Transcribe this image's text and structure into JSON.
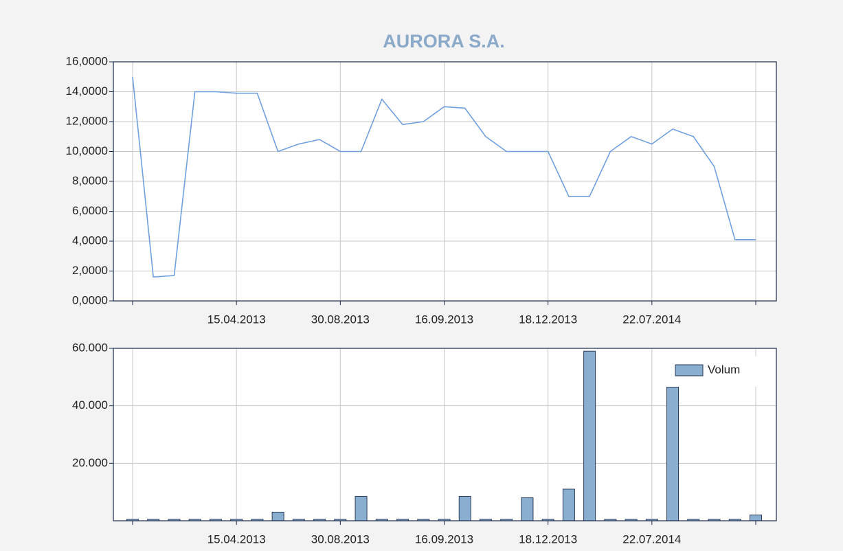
{
  "chart_data": [
    {
      "type": "line",
      "title": "AURORA S.A.",
      "color": "#6f9fe0",
      "grid": true,
      "categories": [
        null,
        null,
        null,
        null,
        null,
        "15.04.2013",
        null,
        null,
        null,
        null,
        "30.08.2013",
        null,
        null,
        null,
        null,
        "16.09.2013",
        null,
        null,
        null,
        null,
        "18.12.2013",
        null,
        null,
        null,
        null,
        "22.07.2014",
        null,
        null,
        null,
        null,
        null
      ],
      "values": [
        15,
        1.6,
        1.7,
        14,
        14,
        13.9,
        13.9,
        10,
        10.5,
        10.8,
        10,
        10,
        13.5,
        11.8,
        12,
        13,
        12.9,
        11,
        10,
        10,
        10,
        7,
        7,
        10,
        11,
        10.5,
        11.5,
        11,
        9,
        4.1,
        4.1
      ],
      "ylim": [
        0,
        16
      ],
      "yticks": [
        {
          "value": 0,
          "label": "0,0000"
        },
        {
          "value": 2,
          "label": "2,0000"
        },
        {
          "value": 4,
          "label": "4,0000"
        },
        {
          "value": 6,
          "label": "6,0000"
        },
        {
          "value": 8,
          "label": "8,0000"
        },
        {
          "value": 10,
          "label": "10,0000"
        },
        {
          "value": 12,
          "label": "12,0000"
        },
        {
          "value": 14,
          "label": "14,0000"
        },
        {
          "value": 16,
          "label": "16,0000"
        }
      ]
    },
    {
      "type": "bar",
      "grid": true,
      "legend": "upper right",
      "categories": [
        null,
        null,
        null,
        null,
        null,
        "15.04.2013",
        null,
        null,
        null,
        null,
        "30.08.2013",
        null,
        null,
        null,
        null,
        "16.09.2013",
        null,
        null,
        null,
        null,
        "18.12.2013",
        null,
        null,
        null,
        null,
        "22.07.2014",
        null,
        null,
        null,
        null,
        null
      ],
      "series": [
        {
          "name": "Volum",
          "color": "#8aaed0",
          "values": [
            500,
            500,
            500,
            500,
            500,
            500,
            500,
            3000,
            500,
            500,
            500,
            8500,
            500,
            500,
            500,
            500,
            8500,
            500,
            500,
            8000,
            500,
            11000,
            59000,
            500,
            500,
            500,
            46500,
            500,
            500,
            500,
            2000
          ]
        }
      ],
      "ylim": [
        0,
        60000
      ],
      "yticks": [
        {
          "value": 20000,
          "label": "20.000"
        },
        {
          "value": 40000,
          "label": "40.000"
        },
        {
          "value": 60000,
          "label": "60.000"
        }
      ]
    }
  ]
}
